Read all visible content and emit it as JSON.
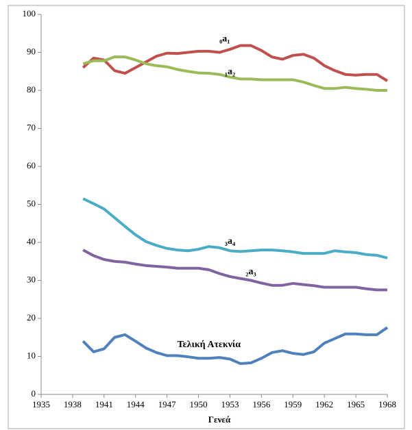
{
  "chart_data": {
    "type": "line",
    "x_label": "Γενεά",
    "x": [
      1939,
      1940,
      1941,
      1942,
      1943,
      1944,
      1945,
      1946,
      1947,
      1948,
      1949,
      1950,
      1951,
      1952,
      1953,
      1954,
      1955,
      1956,
      1957,
      1958,
      1959,
      1960,
      1961,
      1962,
      1963,
      1964,
      1965,
      1966,
      1967,
      1968
    ],
    "xlim": [
      1935,
      1968
    ],
    "xticks": [
      1935,
      1938,
      1941,
      1944,
      1947,
      1950,
      1953,
      1956,
      1959,
      1962,
      1965,
      1968
    ],
    "ylim": [
      0,
      100
    ],
    "yticks": [
      0,
      10,
      20,
      30,
      40,
      50,
      60,
      70,
      80,
      90,
      100
    ],
    "series": [
      {
        "name": "₀a₁",
        "color": "#c0504d",
        "values": [
          86,
          88.5,
          88,
          85.2,
          84.5,
          86,
          87.5,
          89,
          89.8,
          89.7,
          90,
          90.3,
          90.3,
          90,
          90.8,
          91.8,
          91.8,
          90.5,
          88.8,
          88.2,
          89.2,
          89.5,
          88.5,
          86.5,
          85.2,
          84.2,
          84,
          84.2,
          84.2,
          82.5
        ]
      },
      {
        "name": "₁a₂",
        "color": "#9bbb59",
        "values": [
          87,
          87.8,
          87.8,
          88.8,
          88.8,
          88,
          87,
          86.5,
          86.2,
          85.5,
          85,
          84.6,
          84.5,
          84.2,
          83.5,
          83,
          83,
          82.8,
          82.8,
          82.8,
          82.8,
          82.2,
          81.3,
          80.5,
          80.5,
          80.8,
          80.5,
          80.3,
          80,
          80
        ]
      },
      {
        "name": "₂a₃",
        "color": "#8064a2",
        "values": [
          38,
          36.5,
          35.5,
          35,
          34.8,
          34.3,
          33.9,
          33.7,
          33.5,
          33.2,
          33.2,
          33.2,
          32.8,
          31.8,
          31,
          30.5,
          30,
          29.3,
          28.7,
          28.7,
          29.2,
          28.9,
          28.6,
          28.2,
          28.2,
          28.2,
          28.2,
          27.8,
          27.5,
          27.5
        ]
      },
      {
        "name": "₃a₄",
        "color": "#4bacc6",
        "values": [
          51.5,
          50.2,
          48.8,
          46.5,
          44.2,
          42,
          40.2,
          39.2,
          38.4,
          38,
          37.8,
          38.2,
          38.9,
          38.6,
          37.8,
          37.6,
          37.8,
          38,
          38,
          37.8,
          37.5,
          37.1,
          37.1,
          37.1,
          37.8,
          37.5,
          37.3,
          36.8,
          36.6,
          35.9
        ]
      },
      {
        "name": "Τελική Ατεκνία",
        "color": "#4f81bd",
        "values": [
          14,
          11.2,
          12,
          15,
          15.7,
          14,
          12.2,
          11,
          10.2,
          10.2,
          9.9,
          9.5,
          9.5,
          9.7,
          9.3,
          8.1,
          8.3,
          9.5,
          11,
          11.5,
          10.8,
          10.5,
          11.2,
          13.5,
          14.7,
          15.9,
          15.9,
          15.7,
          15.7,
          17.6
        ]
      }
    ]
  }
}
